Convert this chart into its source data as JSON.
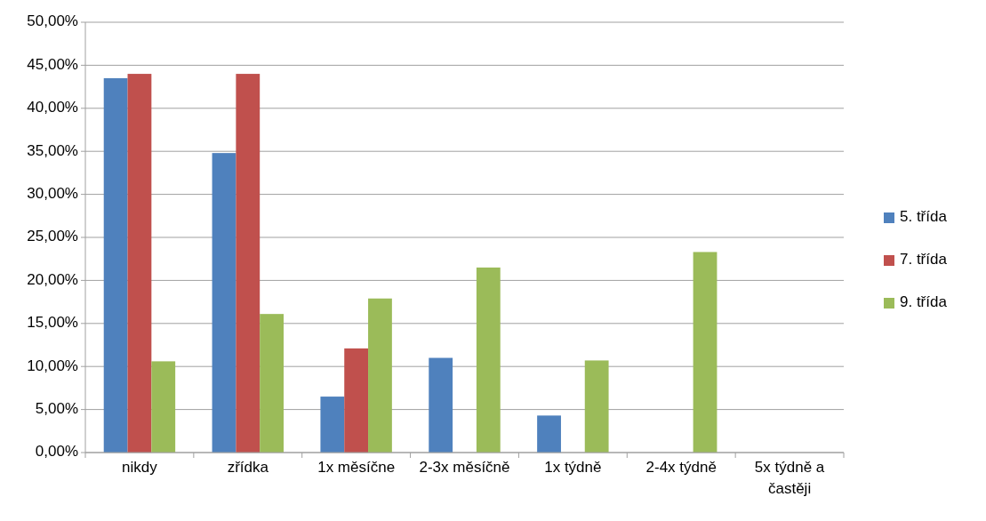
{
  "chart_data": {
    "type": "bar",
    "categories": [
      "nikdy",
      "zřídka",
      "1x měsíčne",
      "2-3x měsíčně",
      "1x týdně",
      "2-4x týdně",
      "5x týdně a častěji"
    ],
    "series": [
      {
        "name": "5. třída",
        "color": "#4f81bd",
        "values": [
          43.5,
          34.8,
          6.5,
          11.0,
          4.3,
          0,
          0
        ]
      },
      {
        "name": "7. třída",
        "color": "#c0504d",
        "values": [
          44.0,
          44.0,
          12.1,
          0,
          0,
          0,
          0
        ]
      },
      {
        "name": "9. třída",
        "color": "#9bbb59",
        "values": [
          10.6,
          16.1,
          17.9,
          21.5,
          10.7,
          23.3,
          0
        ]
      }
    ],
    "ylim": [
      0,
      50
    ],
    "yticks": [
      {
        "value": 0,
        "label": "0,00%"
      },
      {
        "value": 5,
        "label": "5,00%"
      },
      {
        "value": 10,
        "label": "10,00%"
      },
      {
        "value": 15,
        "label": "15,00%"
      },
      {
        "value": 20,
        "label": "20,00%"
      },
      {
        "value": 25,
        "label": "25,00%"
      },
      {
        "value": 30,
        "label": "30,00%"
      },
      {
        "value": 35,
        "label": "35,00%"
      },
      {
        "value": 40,
        "label": "40,00%"
      },
      {
        "value": 45,
        "label": "45,00%"
      },
      {
        "value": 50,
        "label": "50,00%"
      }
    ],
    "grid": "y",
    "legend": "right"
  }
}
